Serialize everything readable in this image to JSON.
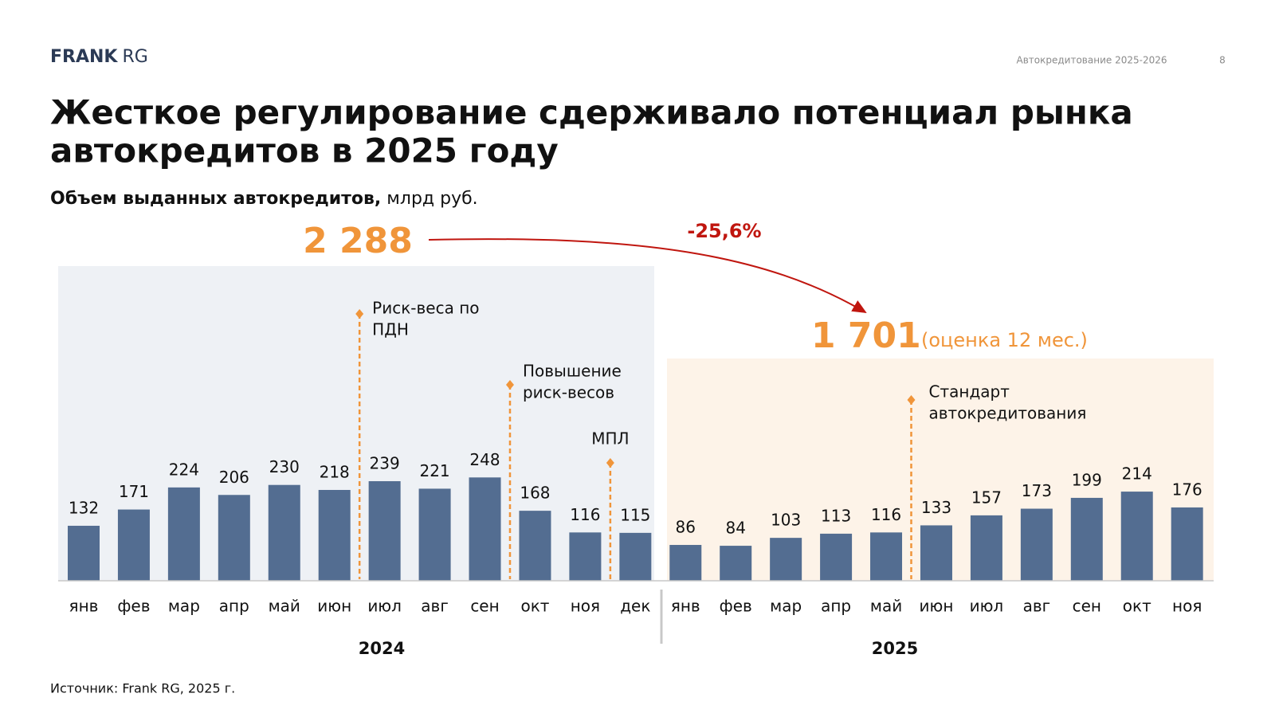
{
  "header": {
    "logo_bold": "FRANK",
    "logo_light": "RG",
    "report": "Автокредитование 2025-2026",
    "page": "8"
  },
  "title_lines": [
    "Жесткое регулирование сдерживало потенциал рынка",
    "автокредитов в 2025 году"
  ],
  "chart_data": {
    "type": "bar",
    "subtitle_bold": "Объем выданных автокредитов,",
    "subtitle_unit": "млрд руб.",
    "color": "#536d91",
    "groups": [
      {
        "label": "2024",
        "background": "#eef1f5",
        "categories": [
          "янв",
          "фев",
          "мар",
          "апр",
          "май",
          "июн",
          "июл",
          "авг",
          "сен",
          "окт",
          "ноя",
          "дек"
        ],
        "values": [
          132,
          171,
          224,
          206,
          230,
          218,
          239,
          221,
          248,
          168,
          116,
          115
        ],
        "total": {
          "value": 2288,
          "label": "2 288"
        }
      },
      {
        "label": "2025",
        "background": "#fdf3e8",
        "categories": [
          "янв",
          "фев",
          "мар",
          "апр",
          "май",
          "июн",
          "июл",
          "авг",
          "сен",
          "окт",
          "ноя"
        ],
        "values": [
          86,
          84,
          103,
          113,
          116,
          133,
          157,
          173,
          199,
          214,
          176
        ],
        "total": {
          "value": 1701,
          "label": "1 701",
          "note": "(оценка 12 мес.)"
        }
      }
    ],
    "change": {
      "value": -25.6,
      "label": "-25,6%"
    },
    "total_color": "#f0953a",
    "change_color": "#c0160f",
    "events": [
      {
        "lines": [
          "Риск-веса по",
          "ПДН"
        ]
      },
      {
        "lines": [
          "Повышение",
          "риск-весов"
        ]
      },
      {
        "lines": [
          "МПЛ"
        ]
      },
      {
        "lines": [
          "Стандарт",
          "автокредитования"
        ]
      }
    ]
  },
  "source": "Источник: Frank RG, 2025 г."
}
